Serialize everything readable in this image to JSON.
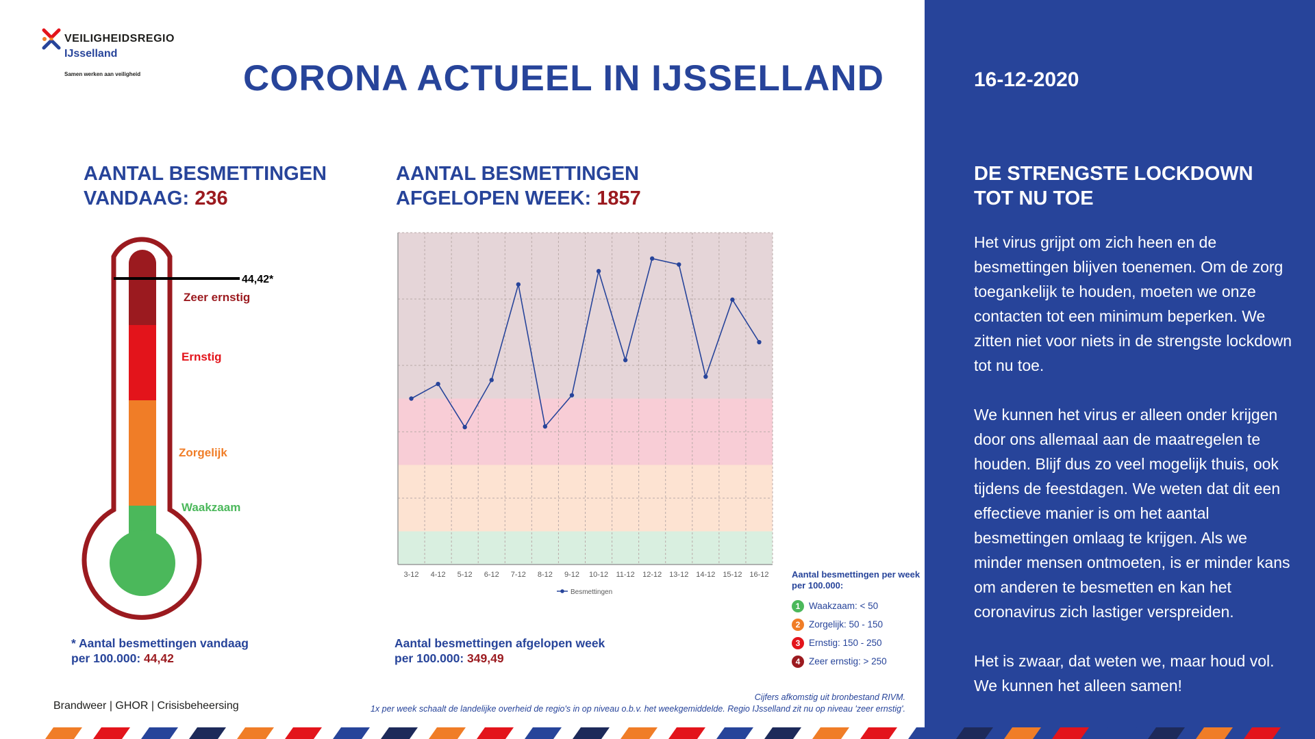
{
  "logo": {
    "name": "VEILIGHEIDSREGIO",
    "region": "IJsselland",
    "tagline": "Samen werken aan veiligheid"
  },
  "title": "CORONA ACTUEEL IN IJSSELLAND",
  "today": {
    "heading_line1": "AANTAL BESMETTINGEN",
    "heading_line2": "VANDAAG: ",
    "value": "236",
    "footnote_line1": "* Aantal besmettingen vandaag",
    "footnote_line2": "per 100.000: ",
    "footnote_value": "44,42"
  },
  "week": {
    "heading_line1": "AANTAL BESMETTINGEN",
    "heading_line2": "AFGELOPEN WEEK: ",
    "value": "1857",
    "footnote_line1": "Aantal besmettingen afgelopen week",
    "footnote_line2": "per 100.000: ",
    "footnote_value": "349,49"
  },
  "thermometer": {
    "marker_label": "44,42*",
    "levels": [
      {
        "label": "Zeer ernstig",
        "color": "#9b1a1f"
      },
      {
        "label": "Ernstig",
        "color": "#e3141b"
      },
      {
        "label": "Zorgelijk",
        "color": "#f07d27"
      },
      {
        "label": "Waakzaam",
        "color": "#4bb85b"
      }
    ]
  },
  "legend": {
    "title": "Aantal besmettingen per week per 100.000:",
    "items": [
      {
        "num": "1",
        "label": "Waakzaam: < 50",
        "color": "#4bb85b"
      },
      {
        "num": "2",
        "label": "Zorgelijk: 50 - 150",
        "color": "#f07d27"
      },
      {
        "num": "3",
        "label": "Ernstig: 150 - 250",
        "color": "#e3141b"
      },
      {
        "num": "4",
        "label": "Zeer ernstig: > 250",
        "color": "#9b1a1f"
      }
    ]
  },
  "chart_data": {
    "type": "line",
    "categories": [
      "3-12",
      "4-12",
      "5-12",
      "6-12",
      "7-12",
      "8-12",
      "9-12",
      "10-12",
      "11-12",
      "12-12",
      "13-12",
      "14-12",
      "15-12",
      "16-12"
    ],
    "series": [
      {
        "name": "Besmettingen",
        "values": [
          250,
          272,
          207,
          278,
          422,
          208,
          255,
          442,
          308,
          461,
          452,
          283,
          399,
          335
        ],
        "color": "#27449a"
      }
    ],
    "bands": [
      {
        "from": 0,
        "to": 50,
        "color": "#d9efe0"
      },
      {
        "from": 50,
        "to": 150,
        "color": "#fde3d2"
      },
      {
        "from": 150,
        "to": 250,
        "color": "#f8cdd6"
      },
      {
        "from": 250,
        "to": 500,
        "color": "#e5d5d8"
      }
    ],
    "ylim": [
      0,
      500
    ],
    "grid": true,
    "legend_position": "bottom-center"
  },
  "partners": "Brandweer | GHOR | Crisisbeheersing",
  "source_line1": "Cijfers afkomstig uit bronbestand RIVM.",
  "source_line2": "1x per week schaalt de landelijke overheid de regio's in op niveau o.b.v. het weekgemiddelde. Regio IJsselland zit nu op niveau 'zeer ernstig'.",
  "side": {
    "date": "16-12-2020",
    "title_line1": "DE STRENGSTE LOCKDOWN",
    "title_line2": "TOT NU TOE",
    "paragraphs": [
      "Het virus grijpt om zich heen en de besmettingen blijven toenemen. Om de zorg toegankelijk te houden, moeten we onze contacten tot een minimum beperken. We zitten niet voor niets in de strengste lockdown tot nu toe.",
      "We kunnen het virus er alleen onder krijgen door ons allemaal aan de maatregelen te houden. Blijf dus zo veel mogelijk thuis, ook tijdens de feestdagen. We weten dat dit een effectieve manier is om het aantal besmettingen omlaag te krijgen. Als we minder mensen ontmoeten, is er minder kans om anderen te besmetten en kan het coronavirus zich lastiger verspreiden.",
      "Het is zwaar, dat weten we, maar houd vol. We kunnen het alleen samen!"
    ]
  },
  "stripe_colors": [
    "#f07d27",
    "#e3141b",
    "#27449a",
    "#1d2a5a"
  ]
}
